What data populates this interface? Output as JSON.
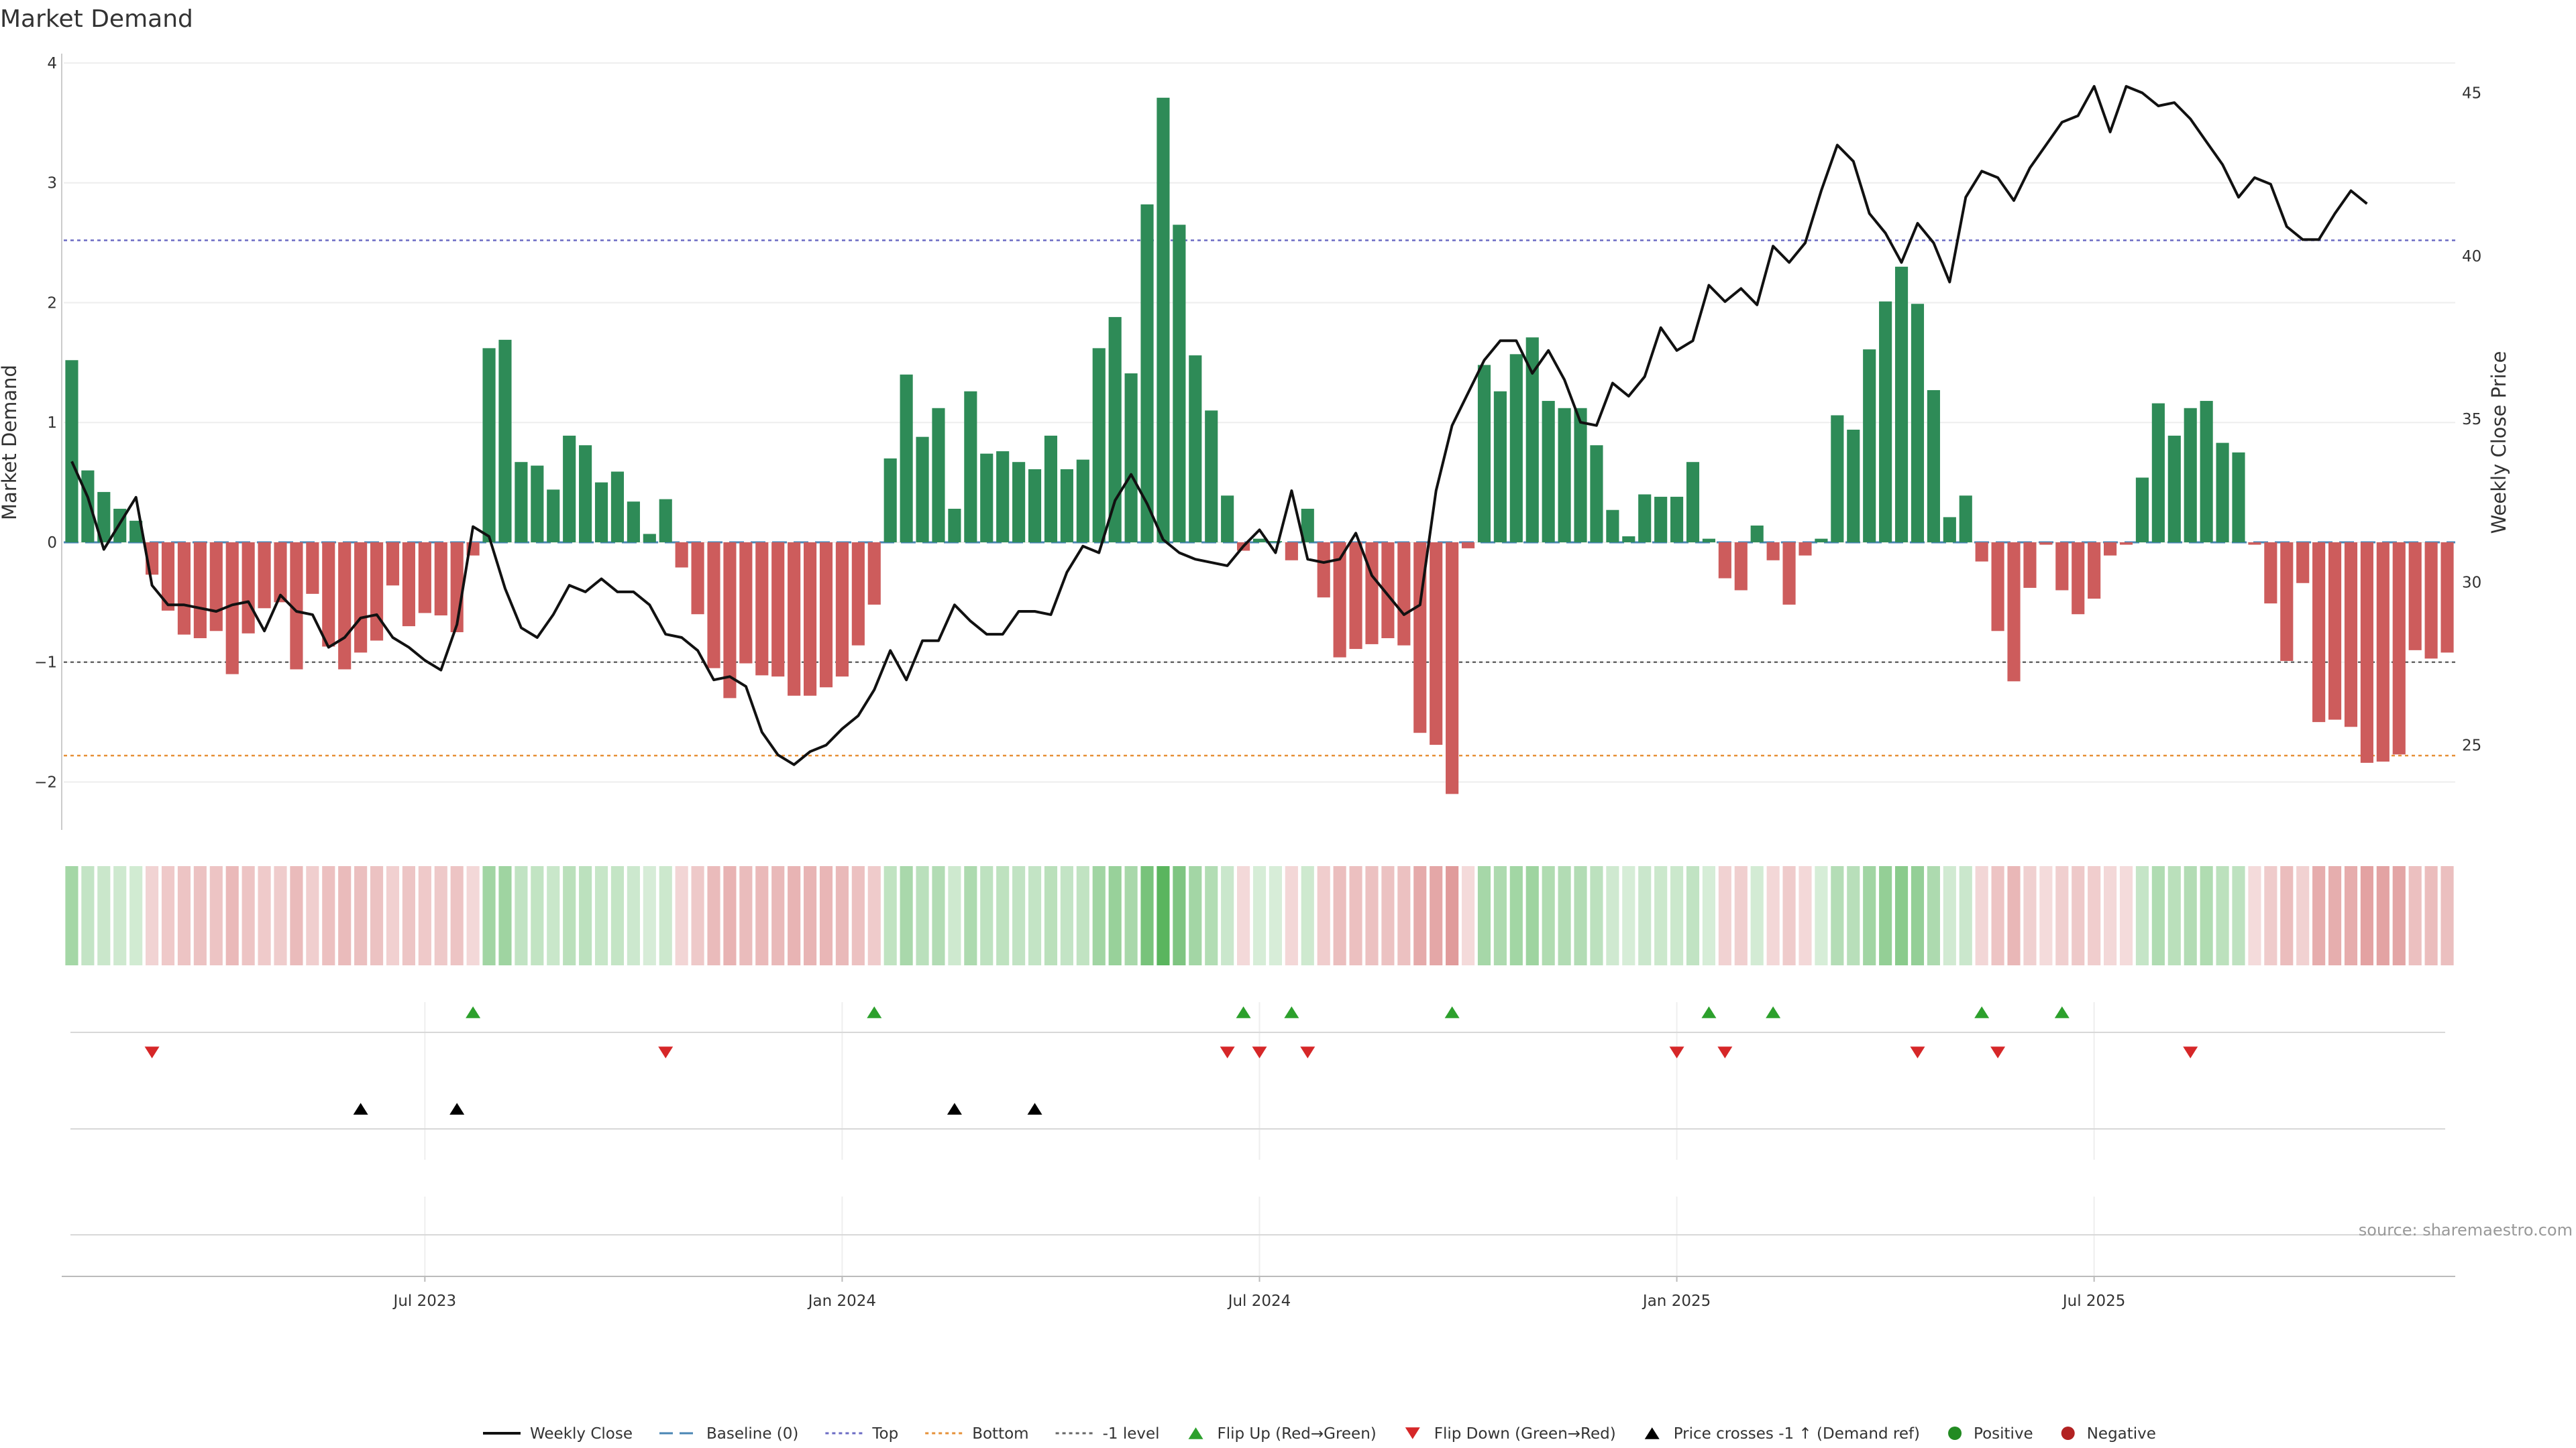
{
  "chart_data": {
    "type": "bar",
    "title": "Market Demand",
    "ylabel_left": "Market Demand",
    "ylabel_right": "Weekly Close Price",
    "left_ylim": [
      -2.4,
      4.05
    ],
    "left_ticks": [
      {
        "v": 4,
        "t": "4"
      },
      {
        "v": 3,
        "t": "3"
      },
      {
        "v": 2,
        "t": "2"
      },
      {
        "v": 1,
        "t": "1"
      },
      {
        "v": 0,
        "t": "0"
      },
      {
        "v": -1,
        "t": "−1"
      },
      {
        "v": -2,
        "t": "−2"
      }
    ],
    "right_ylim": [
      22.4,
      46.1
    ],
    "right_ticks": [
      {
        "v": 45,
        "t": "45"
      },
      {
        "v": 40,
        "t": "40"
      },
      {
        "v": 35,
        "t": "35"
      },
      {
        "v": 30,
        "t": "30"
      },
      {
        "v": 25,
        "t": "25"
      }
    ],
    "x_ticks": [
      {
        "index": 22,
        "label": "Jul 2023"
      },
      {
        "index": 48,
        "label": "Jan 2024"
      },
      {
        "index": 74,
        "label": "Jul 2024"
      },
      {
        "index": 100,
        "label": "Jan 2025"
      },
      {
        "index": 126,
        "label": "Jul 2025"
      }
    ],
    "demand": [
      1.52,
      0.6,
      0.42,
      0.28,
      0.18,
      -0.27,
      -0.57,
      -0.77,
      -0.8,
      -0.74,
      -1.1,
      -0.76,
      -0.55,
      -0.5,
      -1.06,
      -0.43,
      -0.87,
      -1.06,
      -0.92,
      -0.82,
      -0.36,
      -0.7,
      -0.59,
      -0.61,
      -0.75,
      -0.11,
      1.62,
      1.69,
      0.67,
      0.64,
      0.44,
      0.89,
      0.81,
      0.5,
      0.59,
      0.34,
      0.07,
      0.36,
      -0.21,
      -0.6,
      -1.05,
      -1.3,
      -1.01,
      -1.11,
      -1.12,
      -1.28,
      -1.28,
      -1.21,
      -1.12,
      -0.86,
      -0.52,
      0.7,
      1.4,
      0.88,
      1.12,
      0.28,
      1.26,
      0.74,
      0.76,
      0.67,
      0.61,
      0.89,
      0.61,
      0.69,
      1.62,
      1.88,
      1.41,
      2.82,
      3.71,
      2.65,
      1.56,
      1.1,
      0.39,
      -0.07,
      0.03,
      0.01,
      -0.15,
      0.28,
      -0.46,
      -0.96,
      -0.89,
      -0.85,
      -0.8,
      -0.86,
      -1.59,
      -1.69,
      -2.1,
      -0.05,
      1.48,
      1.26,
      1.57,
      1.71,
      1.18,
      1.12,
      1.12,
      0.81,
      0.27,
      0.05,
      0.4,
      0.38,
      0.38,
      0.67,
      0.03,
      -0.3,
      -0.4,
      0.14,
      -0.15,
      -0.52,
      -0.11,
      0.03,
      1.06,
      0.94,
      1.61,
      2.01,
      2.3,
      1.99,
      1.27,
      0.21,
      0.39,
      -0.16,
      -0.74,
      -1.16,
      -0.38,
      -0.02,
      -0.4,
      -0.6,
      -0.47,
      -0.11,
      -0.02,
      0.54,
      1.16,
      0.89,
      1.12,
      1.18,
      0.83,
      0.75,
      -0.02,
      -0.51,
      -0.99,
      -0.34,
      -1.5,
      -1.48,
      -1.54,
      -1.84,
      -1.83,
      -1.77,
      -0.9,
      -0.97,
      -0.92
    ],
    "weekly_close": [
      33.7,
      32.6,
      31.0,
      31.8,
      32.6,
      29.9,
      29.3,
      29.3,
      29.2,
      29.1,
      29.3,
      29.4,
      28.5,
      29.6,
      29.1,
      29.0,
      28.0,
      28.3,
      28.9,
      29.0,
      28.3,
      28.0,
      27.6,
      27.3,
      28.7,
      31.7,
      31.4,
      29.8,
      28.6,
      28.3,
      29.0,
      29.9,
      29.7,
      30.1,
      29.7,
      29.7,
      29.3,
      28.4,
      28.3,
      27.9,
      27.0,
      27.1,
      26.8,
      25.4,
      24.7,
      24.4,
      24.8,
      25.0,
      25.5,
      25.9,
      26.7,
      27.9,
      27.0,
      28.2,
      28.2,
      29.3,
      28.8,
      28.4,
      28.4,
      29.1,
      29.1,
      29.0,
      30.3,
      31.1,
      30.9,
      32.5,
      33.3,
      32.4,
      31.3,
      30.9,
      30.7,
      30.6,
      30.5,
      31.1,
      31.6,
      30.9,
      32.8,
      30.7,
      30.6,
      30.7,
      31.5,
      30.2,
      29.6,
      29.0,
      29.3,
      32.8,
      34.8,
      35.8,
      36.8,
      37.4,
      37.4,
      36.4,
      37.1,
      36.2,
      34.9,
      34.8,
      36.1,
      35.7,
      36.3,
      37.8,
      37.1,
      37.4,
      39.1,
      38.6,
      39.0,
      38.5,
      40.3,
      39.8,
      40.4,
      42.0,
      43.4,
      42.9,
      41.3,
      40.7,
      39.8,
      41.0,
      40.4,
      39.2,
      41.8,
      42.6,
      42.4,
      41.7,
      42.7,
      43.4,
      44.1,
      44.3,
      45.2,
      43.8,
      45.2,
      45.0,
      44.6,
      44.7,
      44.2,
      43.5,
      42.8,
      41.8,
      42.4,
      42.2,
      40.9,
      40.5,
      40.5,
      41.3,
      42.0,
      41.6
    ],
    "reference_lines": [
      {
        "name": "Top",
        "value": 2.52,
        "color": "#6b6bc4"
      },
      {
        "name": "Bottom",
        "value": -1.78,
        "color": "#e69138"
      },
      {
        "name": "-1 level",
        "value": -1,
        "color": "#666666"
      },
      {
        "name": "Baseline (0)",
        "value": 0,
        "color": "#4a86b4"
      }
    ],
    "flip_up_indices": [
      25,
      50,
      73,
      76,
      86,
      102,
      106,
      119,
      124
    ],
    "flip_down_indices": [
      5,
      37,
      72,
      74,
      77,
      100,
      103,
      115,
      120,
      132
    ],
    "price_cross_indices": [
      18,
      24,
      55,
      60
    ],
    "legend": [
      {
        "key": "weekly_close",
        "label": "Weekly Close"
      },
      {
        "key": "baseline",
        "label": "Baseline (0)"
      },
      {
        "key": "top",
        "label": "Top"
      },
      {
        "key": "bottom",
        "label": "Bottom"
      },
      {
        "key": "minus1",
        "label": "-1 level"
      },
      {
        "key": "flip_up",
        "label": "Flip Up (Red→Green)"
      },
      {
        "key": "flip_down",
        "label": "Flip Down (Green→Red)"
      },
      {
        "key": "price_cross",
        "label": "Price crosses -1 ↑ (Demand ref)"
      },
      {
        "key": "positive",
        "label": "Positive"
      },
      {
        "key": "negative",
        "label": "Negative"
      }
    ],
    "source": "source: sharemaestro.com"
  },
  "colors": {
    "positive": "#2e8b57",
    "negative": "#cd5c5c",
    "price": "#111111",
    "flip_up": "#2ca02c",
    "flip_down": "#d62728",
    "price_cross": "#000000",
    "positive_dot": "#228b22",
    "negative_dot": "#b22222"
  }
}
